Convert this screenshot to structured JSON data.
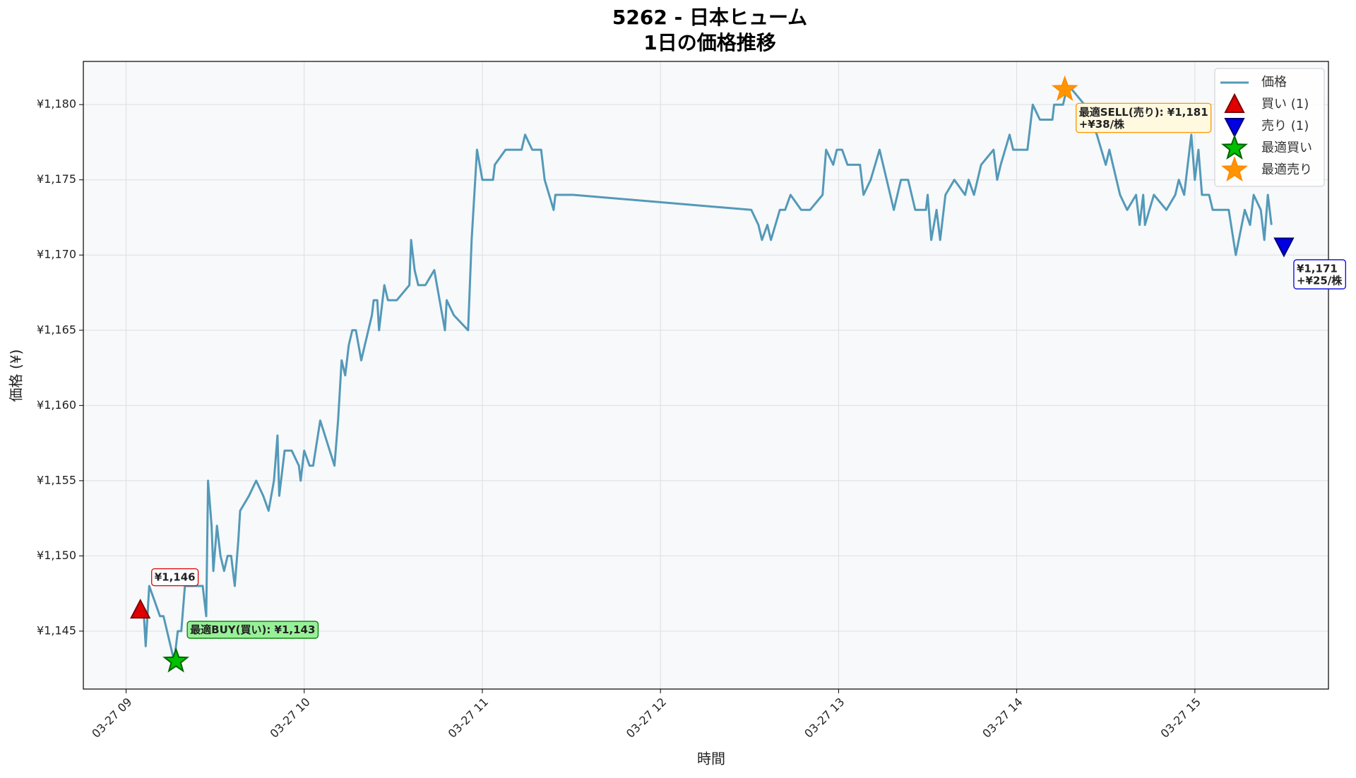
{
  "chart_data": {
    "type": "line",
    "title": [
      "5262 - 日本ヒューム",
      "1日の価格推移"
    ],
    "x_label": "時間",
    "y_label": "価格 (¥)",
    "xlim": [
      8.76,
      15.75
    ],
    "xticks": [
      {
        "value": 9,
        "label": "03-27 09"
      },
      {
        "value": 10,
        "label": "03-27 10"
      },
      {
        "value": 11,
        "label": "03-27 11"
      },
      {
        "value": 12,
        "label": "03-27 12"
      },
      {
        "value": 13,
        "label": "03-27 13"
      },
      {
        "value": 14,
        "label": "03-27 14"
      },
      {
        "value": 15,
        "label": "03-27 15"
      }
    ],
    "ylim": [
      1141.15,
      1182.87
    ],
    "yticks": [
      {
        "value": 1145,
        "label": "¥1,145"
      },
      {
        "value": 1150,
        "label": "¥1,150"
      },
      {
        "value": 1155,
        "label": "¥1,155"
      },
      {
        "value": 1160,
        "label": "¥1,160"
      },
      {
        "value": 1165,
        "label": "¥1,165"
      },
      {
        "value": 1170,
        "label": "¥1,170"
      },
      {
        "value": 1175,
        "label": "¥1,175"
      },
      {
        "value": 1180,
        "label": "¥1,180"
      }
    ],
    "grid": true,
    "legend": "upper right",
    "series": [
      {
        "name": "価格",
        "type": "line",
        "color": "#5499b8",
        "x": [
          9.06,
          9.1,
          9.11,
          9.13,
          9.16,
          9.19,
          9.21,
          9.25,
          9.27,
          9.29,
          9.31,
          9.33,
          9.43,
          9.45,
          9.46,
          9.48,
          9.49,
          9.51,
          9.53,
          9.55,
          9.57,
          9.59,
          9.61,
          9.63,
          9.64,
          9.69,
          9.73,
          9.77,
          9.8,
          9.83,
          9.85,
          9.86,
          9.89,
          9.93,
          9.97,
          9.98,
          10.0,
          10.03,
          10.05,
          10.09,
          10.17,
          10.19,
          10.21,
          10.23,
          10.25,
          10.27,
          10.29,
          10.32,
          10.34,
          10.38,
          10.39,
          10.41,
          10.42,
          10.45,
          10.47,
          10.52,
          10.59,
          10.6,
          10.62,
          10.64,
          10.68,
          10.73,
          10.79,
          10.8,
          10.84,
          10.92,
          10.94,
          10.97,
          11.0,
          11.06,
          11.07,
          11.13,
          11.22,
          11.24,
          11.28,
          11.33,
          11.35,
          11.4,
          11.41,
          11.51,
          12.51,
          12.55,
          12.57,
          12.6,
          12.62,
          12.67,
          12.7,
          12.73,
          12.79,
          12.84,
          12.91,
          12.93,
          12.97,
          12.99,
          13.02,
          13.05,
          13.12,
          13.14,
          13.18,
          13.23,
          13.27,
          13.31,
          13.35,
          13.39,
          13.43,
          13.49,
          13.5,
          13.52,
          13.55,
          13.57,
          13.6,
          13.65,
          13.71,
          13.73,
          13.76,
          13.8,
          13.87,
          13.89,
          13.91,
          13.96,
          13.98,
          14.06,
          14.09,
          14.13,
          14.2,
          14.21,
          14.26,
          14.28,
          14.31,
          14.38,
          14.45,
          14.5,
          14.52,
          14.54,
          14.58,
          14.62,
          14.67,
          14.69,
          14.71,
          14.72,
          14.77,
          14.84,
          14.89,
          14.91,
          14.94,
          14.98,
          15.0,
          15.02,
          15.04,
          15.08,
          15.1,
          15.19,
          15.23,
          15.28,
          15.31,
          15.33,
          15.37,
          15.39,
          15.41,
          15.43
        ],
        "values": [
          1146,
          1146,
          1144,
          1148,
          1147,
          1146,
          1146,
          1144,
          1143,
          1145,
          1145,
          1148,
          1148,
          1146,
          1155,
          1152,
          1149,
          1152,
          1150,
          1149,
          1150,
          1150,
          1148,
          1151,
          1153,
          1154,
          1155,
          1154,
          1153,
          1155,
          1158,
          1154,
          1157,
          1157,
          1156,
          1155,
          1157,
          1156,
          1156,
          1159,
          1156,
          1159,
          1163,
          1162,
          1164,
          1165,
          1165,
          1163,
          1164,
          1166,
          1167,
          1167,
          1165,
          1168,
          1167,
          1167,
          1168,
          1171,
          1169,
          1168,
          1168,
          1169,
          1165,
          1167,
          1166,
          1165,
          1171,
          1177,
          1175,
          1175,
          1176,
          1177,
          1177,
          1178,
          1177,
          1177,
          1175,
          1173,
          1174,
          1174,
          1173,
          1172,
          1171,
          1172,
          1171,
          1173,
          1173,
          1174,
          1173,
          1173,
          1174,
          1177,
          1176,
          1177,
          1177,
          1176,
          1176,
          1174,
          1175,
          1177,
          1175,
          1173,
          1175,
          1175,
          1173,
          1173,
          1174,
          1171,
          1173,
          1171,
          1174,
          1175,
          1174,
          1175,
          1174,
          1176,
          1177,
          1175,
          1176,
          1178,
          1177,
          1177,
          1180,
          1179,
          1179,
          1180,
          1180,
          1181,
          1181,
          1180,
          1178,
          1176,
          1177,
          1176,
          1174,
          1173,
          1174,
          1172,
          1174,
          1172,
          1174,
          1173,
          1174,
          1175,
          1174,
          1178,
          1175,
          1177,
          1174,
          1174,
          1173,
          1173,
          1170,
          1173,
          1172,
          1174,
          1173,
          1171,
          1174,
          1172
        ]
      },
      {
        "name": "買い (1)",
        "type": "scatter",
        "marker": "triangle-up",
        "color": "#e00000",
        "x": [
          9.08
        ],
        "values": [
          1146.4
        ],
        "value_labels": [
          "¥1,146"
        ]
      },
      {
        "name": "売り (1)",
        "type": "scatter",
        "marker": "triangle-down",
        "color": "#0000e0",
        "x": [
          15.5
        ],
        "values": [
          1170.6
        ],
        "value_labels": [
          "¥1,171\n+¥25/株"
        ]
      },
      {
        "name": "最適買い",
        "type": "scatter",
        "marker": "star",
        "color": "#00c000",
        "x": [
          9.28
        ],
        "values": [
          1143
        ],
        "value_labels": [
          "最適BUY(買い): ¥1,143"
        ]
      },
      {
        "name": "最適売り",
        "type": "scatter",
        "marker": "star",
        "color": "#ff9500",
        "x": [
          14.27
        ],
        "values": [
          1181
        ],
        "value_labels": [
          "最適SELL(売り): ¥1,181\n+¥38/株"
        ]
      }
    ]
  }
}
